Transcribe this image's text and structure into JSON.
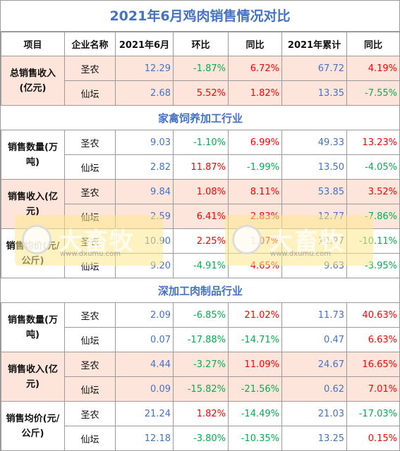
{
  "title": "2021年6月鸡肉销售情况对比",
  "headers": [
    "项目",
    "企业名称",
    "2021年6月",
    "环比",
    "同比",
    "2021年累计",
    "同比"
  ],
  "companies": {
    "a": "圣农",
    "b": "仙坛"
  },
  "total": {
    "label": "总销售收入(亿元)",
    "rows": [
      {
        "month": "12.29",
        "mom": "-1.87%",
        "yoy": "6.72%",
        "cum": "67.72",
        "cum_yoy": "4.19%"
      },
      {
        "month": "2.68",
        "mom": "5.52%",
        "yoy": "1.82%",
        "cum": "13.35",
        "cum_yoy": "-7.55%"
      }
    ]
  },
  "section1": {
    "title": "家禽饲养加工行业",
    "groups": [
      {
        "label": "销售数量(万吨)",
        "rows": [
          {
            "month": "9.03",
            "mom": "-1.10%",
            "yoy": "6.99%",
            "cum": "49.33",
            "cum_yoy": "13.23%"
          },
          {
            "month": "2.82",
            "mom": "11.87%",
            "yoy": "-1.99%",
            "cum": "13.50",
            "cum_yoy": "-4.05%"
          }
        ]
      },
      {
        "label": "销售收入(亿元)",
        "rows": [
          {
            "month": "9.84",
            "mom": "1.08%",
            "yoy": "8.11%",
            "cum": "53.85",
            "cum_yoy": "3.52%"
          },
          {
            "month": "2.59",
            "mom": "6.41%",
            "yoy": "2.83%",
            "cum": "12.77",
            "cum_yoy": "-7.86%"
          }
        ]
      },
      {
        "label": "销售均价(元/公斤)",
        "rows": [
          {
            "month": "10.90",
            "mom": "2.25%",
            "yoy": "1.07%",
            "cum": "10.97",
            "cum_yoy": "-10.11%"
          },
          {
            "month": "9.20",
            "mom": "-4.91%",
            "yoy": "4.65%",
            "cum": "9.63",
            "cum_yoy": "-3.95%"
          }
        ]
      }
    ]
  },
  "section2": {
    "title": "深加工肉制品行业",
    "groups": [
      {
        "label": "销售数量(万吨)",
        "rows": [
          {
            "month": "2.09",
            "mom": "-6.85%",
            "yoy": "21.02%",
            "cum": "11.73",
            "cum_yoy": "40.63%"
          },
          {
            "month": "0.07",
            "mom": "-17.88%",
            "yoy": "-14.71%",
            "cum": "0.47",
            "cum_yoy": "6.63%"
          }
        ]
      },
      {
        "label": "销售收入(亿元)",
        "rows": [
          {
            "month": "4.44",
            "mom": "-3.27%",
            "yoy": "11.09%",
            "cum": "24.67",
            "cum_yoy": "16.65%"
          },
          {
            "month": "0.09",
            "mom": "-15.82%",
            "yoy": "-21.56%",
            "cum": "0.62",
            "cum_yoy": "7.01%"
          }
        ]
      },
      {
        "label": "销售均价(元/公斤)",
        "rows": [
          {
            "month": "21.24",
            "mom": "1.82%",
            "yoy": "-14.49%",
            "cum": "21.03",
            "cum_yoy": "-17.03%"
          },
          {
            "month": "12.18",
            "mom": "-3.80%",
            "yoy": "-10.35%",
            "cum": "13.25",
            "cum_yoy": "0.15%"
          }
        ]
      }
    ]
  },
  "watermark": {
    "brand": "大畜牧",
    "url": "www.dxumu.com"
  },
  "colors": {
    "positive": "#ff0000",
    "negative": "#00b050",
    "value": "#4472c4",
    "title": "#4472c4",
    "highlight": "#fde5db"
  }
}
